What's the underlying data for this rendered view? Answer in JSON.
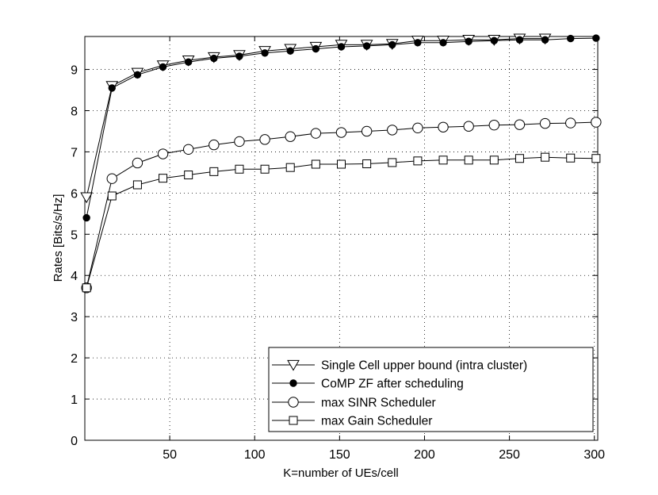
{
  "chart_data": {
    "type": "line",
    "xlabel": "K=number of UEs/cell",
    "ylabel": "Rates [Bits/s/Hz]",
    "xlim": [
      0,
      302
    ],
    "ylim": [
      0,
      9.8
    ],
    "xticks": [
      50,
      100,
      150,
      200,
      250,
      300
    ],
    "yticks": [
      0,
      1,
      2,
      3,
      4,
      5,
      6,
      7,
      8,
      9
    ],
    "grid": true,
    "legend_position": "bottom-right",
    "series": [
      {
        "name": "Single Cell upper bound (intra cluster)",
        "marker": "triangle-down",
        "x": [
          1,
          16,
          31,
          46,
          61,
          76,
          91,
          106,
          121,
          136,
          151,
          166,
          181,
          196,
          211,
          226,
          241,
          256,
          271
        ],
        "y": [
          5.9,
          8.6,
          8.92,
          9.1,
          9.22,
          9.3,
          9.35,
          9.45,
          9.5,
          9.55,
          9.6,
          9.6,
          9.62,
          9.7,
          9.7,
          9.72,
          9.72,
          9.75,
          9.75
        ]
      },
      {
        "name": "CoMP ZF after scheduling",
        "marker": "filled-circle",
        "x": [
          1,
          16,
          31,
          46,
          61,
          76,
          91,
          106,
          121,
          136,
          151,
          166,
          181,
          196,
          211,
          226,
          241,
          256,
          271,
          286,
          301
        ],
        "y": [
          5.4,
          8.55,
          8.87,
          9.06,
          9.18,
          9.27,
          9.32,
          9.4,
          9.45,
          9.5,
          9.55,
          9.57,
          9.6,
          9.65,
          9.65,
          9.68,
          9.7,
          9.72,
          9.72,
          9.75,
          9.76
        ]
      },
      {
        "name": "max SINR Scheduler",
        "marker": "open-circle",
        "x": [
          1,
          16,
          31,
          46,
          61,
          76,
          91,
          106,
          121,
          136,
          151,
          166,
          181,
          196,
          211,
          226,
          241,
          256,
          271,
          286,
          301
        ],
        "y": [
          3.7,
          6.35,
          6.73,
          6.95,
          7.06,
          7.17,
          7.25,
          7.3,
          7.37,
          7.45,
          7.47,
          7.5,
          7.53,
          7.58,
          7.6,
          7.62,
          7.65,
          7.66,
          7.69,
          7.7,
          7.72
        ]
      },
      {
        "name": "max Gain Scheduler",
        "marker": "open-square",
        "x": [
          1,
          16,
          31,
          46,
          61,
          76,
          91,
          106,
          121,
          136,
          151,
          166,
          181,
          196,
          211,
          226,
          241,
          256,
          271,
          286,
          301
        ],
        "y": [
          3.7,
          5.93,
          6.2,
          6.36,
          6.44,
          6.52,
          6.58,
          6.58,
          6.62,
          6.7,
          6.7,
          6.71,
          6.74,
          6.78,
          6.8,
          6.8,
          6.8,
          6.84,
          6.87,
          6.85,
          6.84
        ]
      }
    ]
  }
}
